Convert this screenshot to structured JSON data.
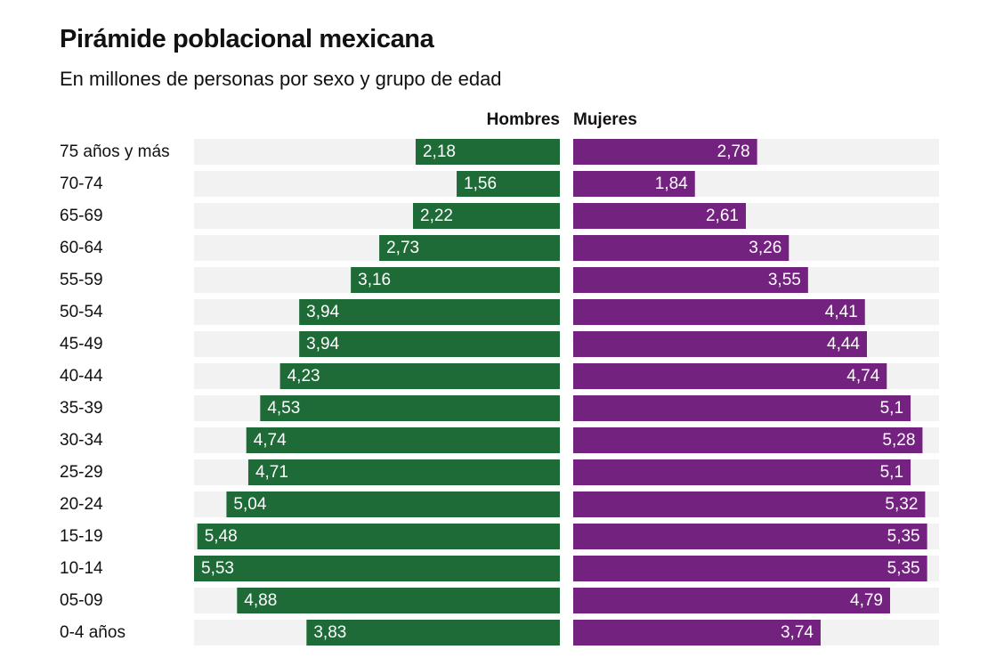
{
  "chart_data": {
    "type": "bar",
    "orientation": "horizontal-diverging",
    "title": "Pirámide poblacional mexicana",
    "subtitle": "En millones de personas por sexo y grupo de edad",
    "categories": [
      "75 años y más",
      "70-74",
      "65-69",
      "60-64",
      "55-59",
      "50-54",
      "45-49",
      "40-44",
      "35-39",
      "30-34",
      "25-29",
      "20-24",
      "15-19",
      "10-14",
      "05-09",
      "0-4 años"
    ],
    "series": [
      {
        "name": "Hombres",
        "values": [
          2.18,
          1.56,
          2.22,
          2.73,
          3.16,
          3.94,
          3.94,
          4.23,
          4.53,
          4.74,
          4.71,
          5.04,
          5.48,
          5.53,
          4.88,
          3.83
        ],
        "labels": [
          "2,18",
          "1,56",
          "2,22",
          "2,73",
          "3,16",
          "3,94",
          "3,94",
          "4,23",
          "4,53",
          "4,74",
          "4,71",
          "5,04",
          "5,48",
          "5,53",
          "4,88",
          "3,83"
        ],
        "color": "#1e6b38"
      },
      {
        "name": "Mujeres",
        "values": [
          2.78,
          1.84,
          2.61,
          3.26,
          3.55,
          4.41,
          4.44,
          4.74,
          5.1,
          5.28,
          5.1,
          5.32,
          5.35,
          5.35,
          4.79,
          3.74
        ],
        "labels": [
          "2,78",
          "1,84",
          "2,61",
          "3,26",
          "3,55",
          "4,41",
          "4,44",
          "4,74",
          "5,1",
          "5,28",
          "5,1",
          "5,32",
          "5,35",
          "5,35",
          "4,79",
          "3,74"
        ],
        "color": "#73237f"
      }
    ],
    "xlim": [
      0,
      5.53
    ],
    "track_color": "#f2f2f2",
    "grid": false,
    "legend_placement": "top-center"
  }
}
